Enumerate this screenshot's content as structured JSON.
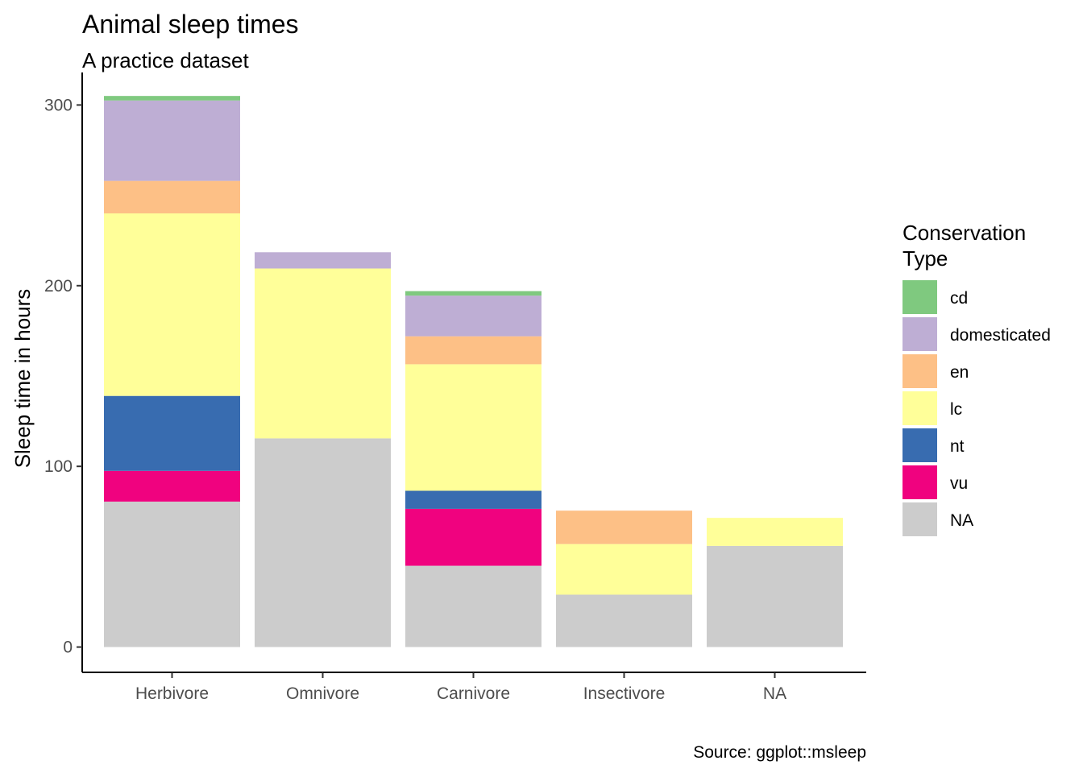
{
  "chart_data": {
    "type": "bar",
    "stacked": true,
    "title": "Animal sleep times",
    "subtitle": "A practice dataset",
    "xlabel": "",
    "ylabel": "Sleep time in hours",
    "caption": "Source: ggplot::msleep",
    "ylim": [
      -14,
      318
    ],
    "yticks": [
      0,
      100,
      200,
      300
    ],
    "categories": [
      "Herbivore",
      "Omnivore",
      "Carnivore",
      "Insectivore",
      "NA"
    ],
    "legend": {
      "title_lines": [
        "Conservation",
        "Type"
      ],
      "position": "right"
    },
    "series": [
      {
        "name": "NA",
        "color": "#CCCCCC",
        "values": [
          80.5,
          115.5,
          45.0,
          29.0,
          56.0
        ]
      },
      {
        "name": "vu",
        "color": "#F0027F",
        "values": [
          17.0,
          0,
          31.5,
          0,
          0
        ]
      },
      {
        "name": "nt",
        "color": "#386CB0",
        "values": [
          41.5,
          0,
          10.0,
          0,
          0
        ]
      },
      {
        "name": "lc",
        "color": "#FFFF99",
        "values": [
          101.0,
          94.0,
          70.0,
          28.0,
          15.5
        ]
      },
      {
        "name": "en",
        "color": "#FDC086",
        "values": [
          18.0,
          0,
          15.5,
          18.5,
          0
        ]
      },
      {
        "name": "domesticated",
        "color": "#BEAED4",
        "values": [
          44.5,
          9.0,
          22.5,
          0,
          0
        ]
      },
      {
        "name": "cd",
        "color": "#7FC97F",
        "values": [
          2.5,
          0,
          2.5,
          0,
          0
        ]
      }
    ],
    "legend_order": [
      "cd",
      "domesticated",
      "en",
      "lc",
      "nt",
      "vu",
      "NA"
    ]
  }
}
